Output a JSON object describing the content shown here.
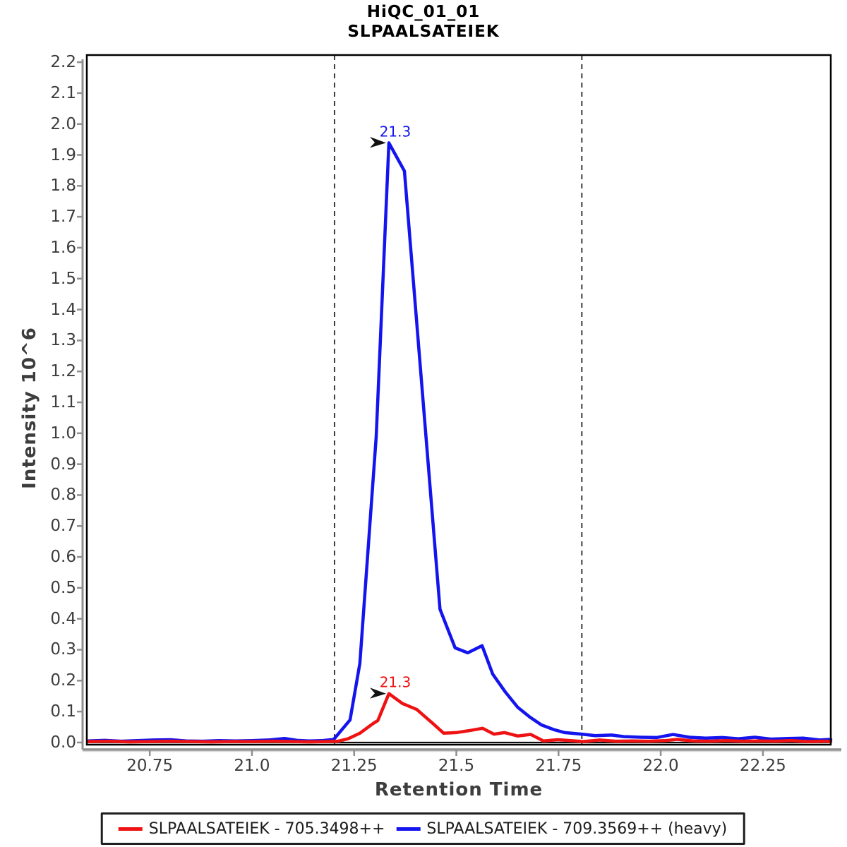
{
  "title": {
    "line1": "HiQC_01_01",
    "line2": "SLPAALSATEIEK"
  },
  "axes": {
    "x_label": "Retention Time",
    "y_label": "Intensity 10^6"
  },
  "legend": {
    "items": [
      {
        "label": "SLPAALSATEIEK - 705.3498++",
        "color": "#ee1212"
      },
      {
        "label": "SLPAALSATEIEK - 709.3569++ (heavy)",
        "color": "#1414ee"
      }
    ]
  },
  "chart_data": {
    "type": "line",
    "title": "HiQC_01_01",
    "subtitle": "SLPAALSATEIEK",
    "xlabel": "Retention Time",
    "ylabel": "Intensity 10^6",
    "xlim": [
      20.596,
      22.416
    ],
    "ylim": [
      -0.007,
      2.223
    ],
    "grid": false,
    "legend_position": "bottom",
    "xticks": {
      "values": [
        20.75,
        21.0,
        21.25,
        21.5,
        21.75,
        22.0,
        22.25
      ],
      "labels": [
        "20.75",
        "21.0",
        "21.25",
        "21.5",
        "21.75",
        "22.0",
        "22.25"
      ]
    },
    "yticks": {
      "values": [
        0.0,
        0.1,
        0.2,
        0.3,
        0.4,
        0.5,
        0.6,
        0.7,
        0.8,
        0.9,
        1.0,
        1.1,
        1.2,
        1.3,
        1.4,
        1.5,
        1.6,
        1.7,
        1.8,
        1.9,
        2.0,
        2.1,
        2.2
      ],
      "labels": [
        "0.0",
        "0.1",
        "0.2",
        "0.3",
        "0.4",
        "0.5",
        "0.6",
        "0.7",
        "0.8",
        "0.9",
        "1.0",
        "1.1",
        "1.2",
        "1.3",
        "1.4",
        "1.5",
        "1.6",
        "1.7",
        "1.8",
        "1.9",
        "2.0",
        "2.1",
        "2.2"
      ]
    },
    "integration_boundaries": [
      21.202,
      21.807
    ],
    "boundary_style": {
      "color": "#3c3c3c",
      "dash": "7,6"
    },
    "arrow_color": "#111111",
    "series": [
      {
        "name": "SLPAALSATEIEK - 705.3498++",
        "color": "#ee1212",
        "peak_annotation": {
          "label": "21.3",
          "x": 21.335,
          "y": 0.158
        },
        "points": [
          [
            20.6,
            0.003
          ],
          [
            20.65,
            0.004
          ],
          [
            20.7,
            0.002
          ],
          [
            20.75,
            0.003
          ],
          [
            20.8,
            0.004
          ],
          [
            20.85,
            0.003
          ],
          [
            20.9,
            0.002
          ],
          [
            20.95,
            0.003
          ],
          [
            21.0,
            0.003
          ],
          [
            21.05,
            0.004
          ],
          [
            21.1,
            0.003
          ],
          [
            21.14,
            0.002
          ],
          [
            21.18,
            0.003
          ],
          [
            21.21,
            0.004
          ],
          [
            21.235,
            0.012
          ],
          [
            21.264,
            0.03
          ],
          [
            21.296,
            0.061
          ],
          [
            21.308,
            0.071
          ],
          [
            21.335,
            0.158
          ],
          [
            21.368,
            0.126
          ],
          [
            21.403,
            0.107
          ],
          [
            21.443,
            0.061
          ],
          [
            21.469,
            0.03
          ],
          [
            21.5,
            0.032
          ],
          [
            21.53,
            0.038
          ],
          [
            21.564,
            0.046
          ],
          [
            21.592,
            0.027
          ],
          [
            21.618,
            0.032
          ],
          [
            21.65,
            0.021
          ],
          [
            21.682,
            0.026
          ],
          [
            21.713,
            0.005
          ],
          [
            21.748,
            0.009
          ],
          [
            21.78,
            0.006
          ],
          [
            21.81,
            0.003
          ],
          [
            21.85,
            0.008
          ],
          [
            21.89,
            0.004
          ],
          [
            21.93,
            0.005
          ],
          [
            21.97,
            0.004
          ],
          [
            22.01,
            0.006
          ],
          [
            22.04,
            0.01
          ],
          [
            22.08,
            0.005
          ],
          [
            22.12,
            0.004
          ],
          [
            22.16,
            0.006
          ],
          [
            22.2,
            0.004
          ],
          [
            22.24,
            0.005
          ],
          [
            22.28,
            0.004
          ],
          [
            22.32,
            0.006
          ],
          [
            22.36,
            0.003
          ],
          [
            22.4,
            0.004
          ],
          [
            22.416,
            0.003
          ]
        ]
      },
      {
        "name": "SLPAALSATEIEK - 709.3569++ (heavy)",
        "color": "#1414ee",
        "peak_annotation": {
          "label": "21.3",
          "x": 21.335,
          "y": 1.939
        },
        "points": [
          [
            20.6,
            0.005
          ],
          [
            20.64,
            0.007
          ],
          [
            20.68,
            0.004
          ],
          [
            20.72,
            0.006
          ],
          [
            20.76,
            0.008
          ],
          [
            20.8,
            0.009
          ],
          [
            20.84,
            0.005
          ],
          [
            20.88,
            0.004
          ],
          [
            20.92,
            0.006
          ],
          [
            20.96,
            0.005
          ],
          [
            21.0,
            0.006
          ],
          [
            21.04,
            0.008
          ],
          [
            21.08,
            0.013
          ],
          [
            21.11,
            0.007
          ],
          [
            21.14,
            0.005
          ],
          [
            21.17,
            0.006
          ],
          [
            21.2,
            0.01
          ],
          [
            21.24,
            0.073
          ],
          [
            21.264,
            0.256
          ],
          [
            21.304,
            0.99
          ],
          [
            21.335,
            1.939
          ],
          [
            21.373,
            1.848
          ],
          [
            21.46,
            0.431
          ],
          [
            21.497,
            0.306
          ],
          [
            21.528,
            0.29
          ],
          [
            21.563,
            0.313
          ],
          [
            21.589,
            0.221
          ],
          [
            21.62,
            0.163
          ],
          [
            21.65,
            0.114
          ],
          [
            21.68,
            0.082
          ],
          [
            21.708,
            0.057
          ],
          [
            21.74,
            0.041
          ],
          [
            21.765,
            0.032
          ],
          [
            21.807,
            0.027
          ],
          [
            21.84,
            0.022
          ],
          [
            21.88,
            0.024
          ],
          [
            21.91,
            0.019
          ],
          [
            21.95,
            0.017
          ],
          [
            21.99,
            0.016
          ],
          [
            22.03,
            0.026
          ],
          [
            22.07,
            0.017
          ],
          [
            22.11,
            0.014
          ],
          [
            22.15,
            0.016
          ],
          [
            22.19,
            0.012
          ],
          [
            22.23,
            0.017
          ],
          [
            22.27,
            0.011
          ],
          [
            22.31,
            0.013
          ],
          [
            22.35,
            0.014
          ],
          [
            22.39,
            0.008
          ],
          [
            22.416,
            0.01
          ]
        ]
      }
    ]
  }
}
